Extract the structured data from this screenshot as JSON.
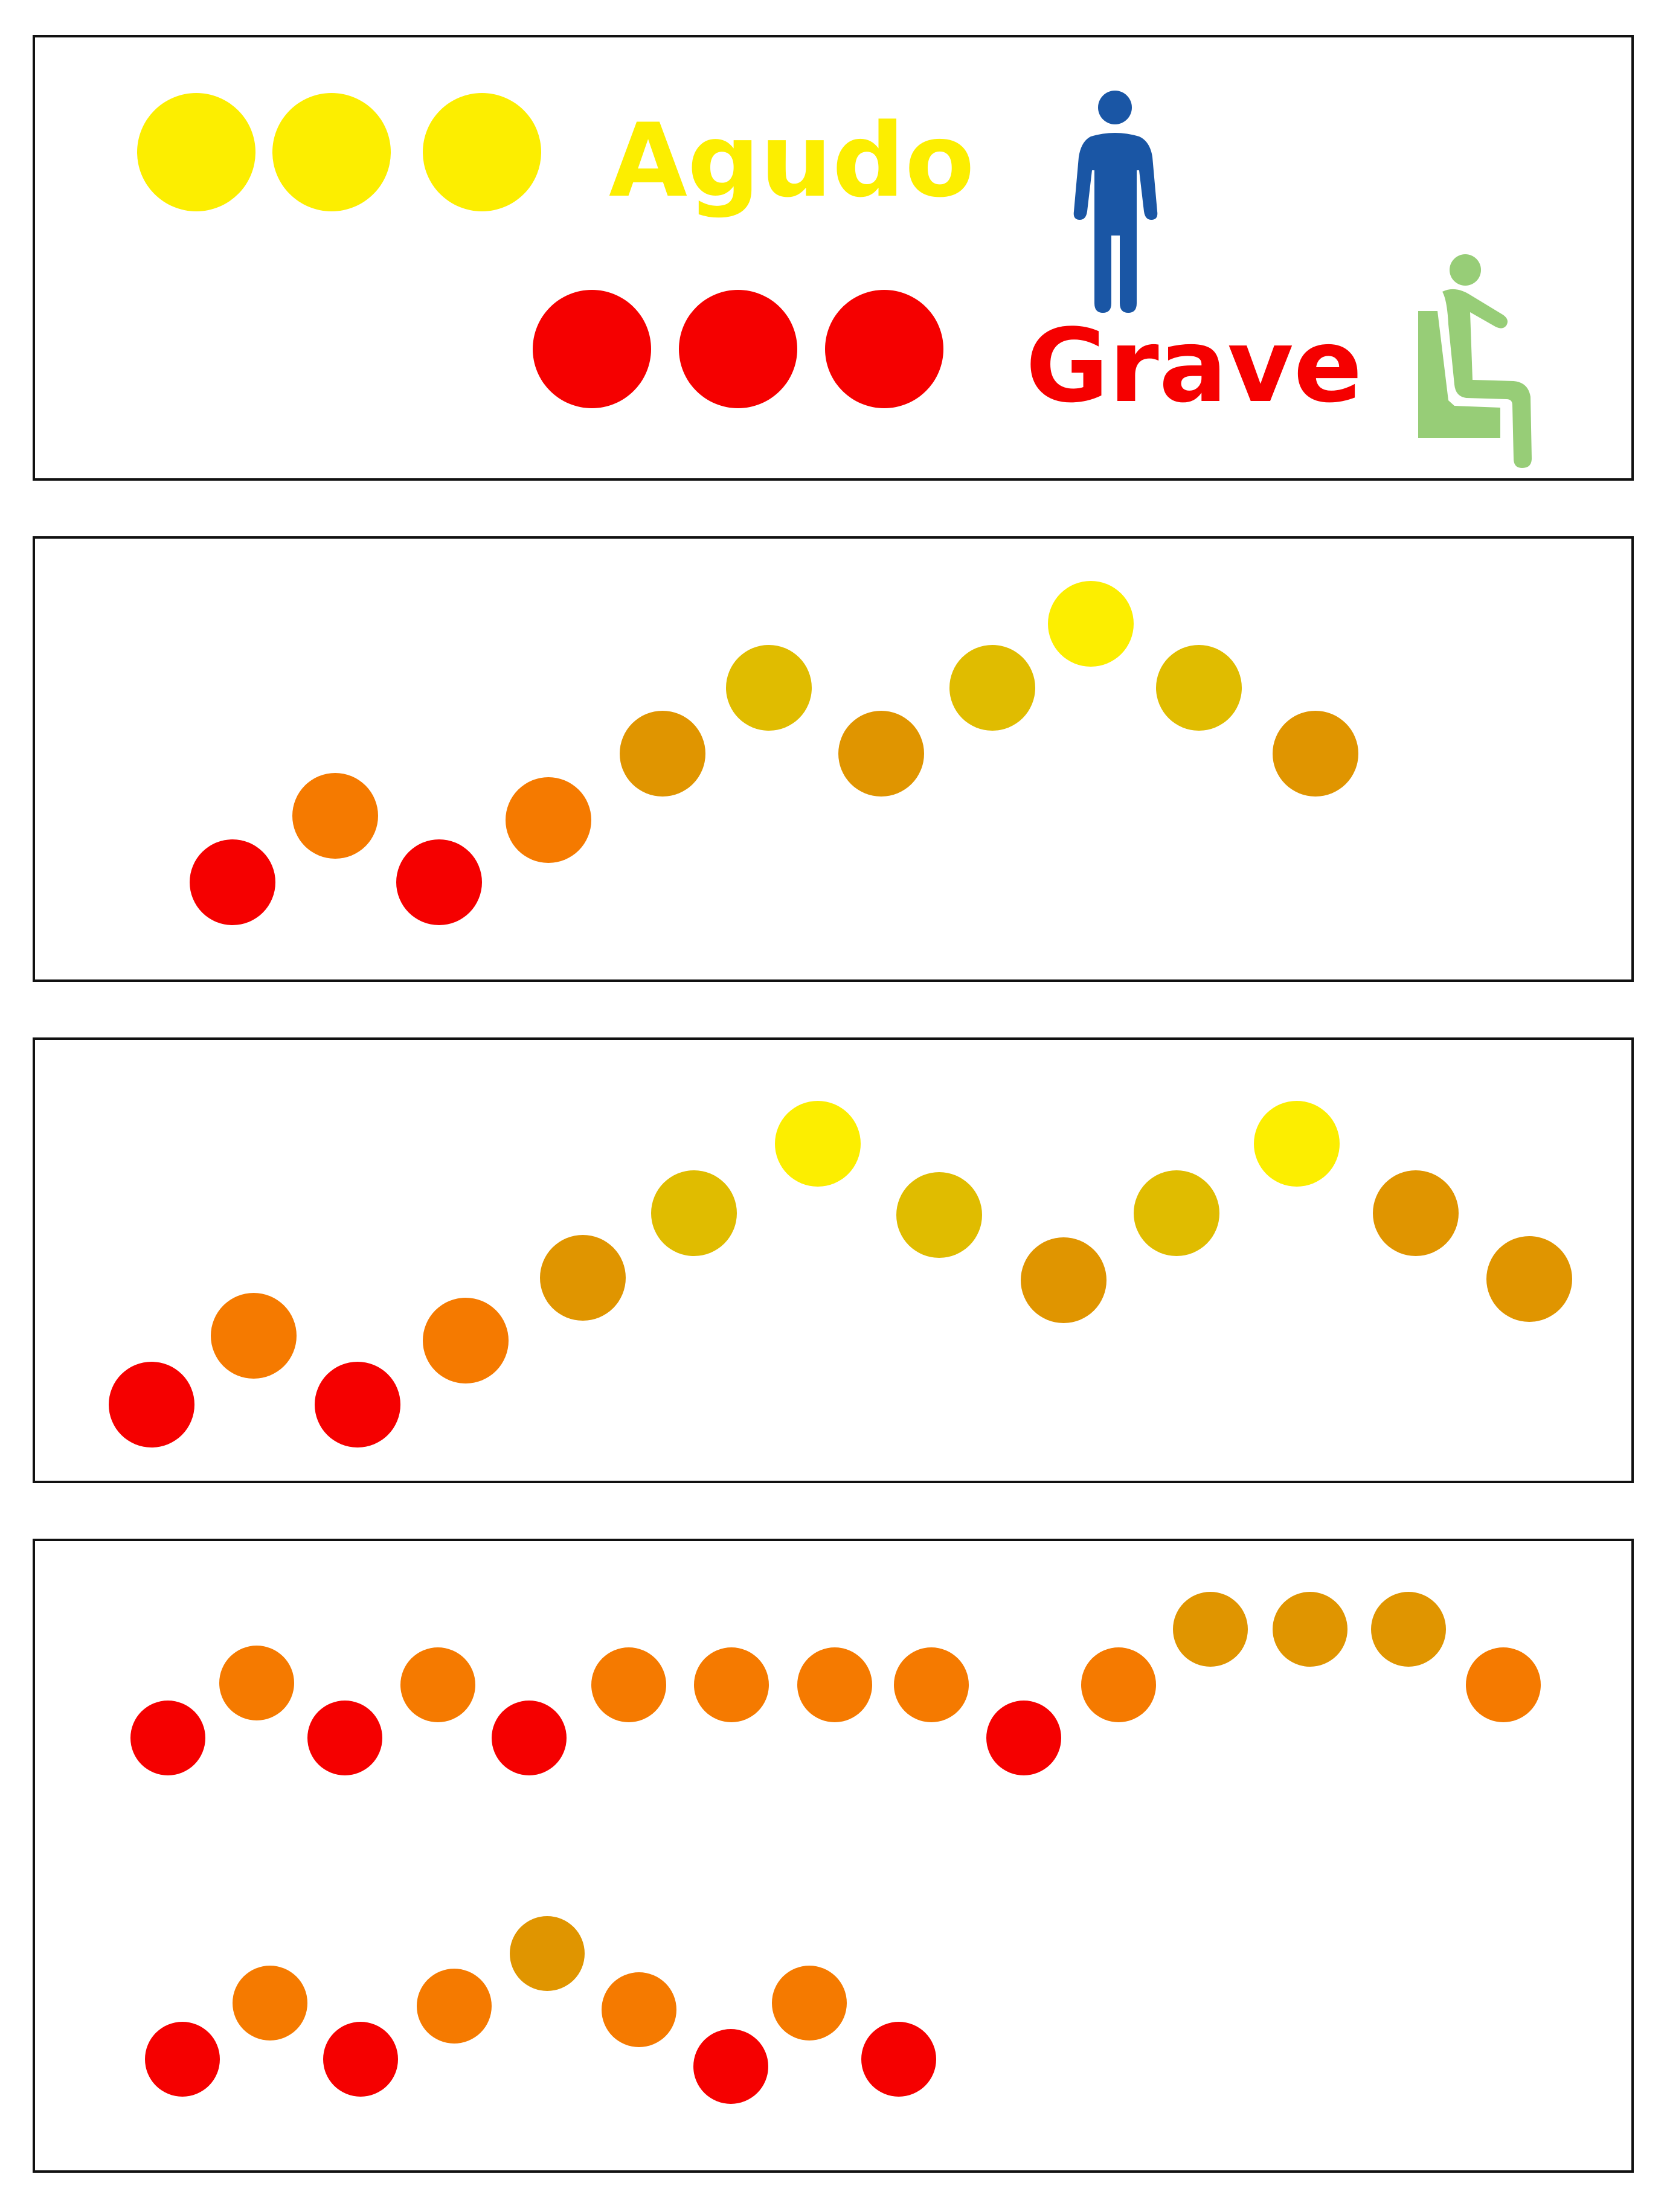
{
  "colors": {
    "high": "#FCEE00",
    "mid_high": "#E0BC00",
    "mid": "#E09500",
    "mid_low": "#F57A00",
    "low": "#F50000",
    "standing_icon": "#1A56A5",
    "sitting_icon": "#97CD77",
    "border": "#111111"
  },
  "legend": {
    "high": {
      "label": "Agudo",
      "dot_count": 3,
      "color": "high",
      "icon": "standing-person-icon"
    },
    "low": {
      "label": "Grave",
      "dot_count": 3,
      "color": "low",
      "icon": "sitting-person-icon"
    }
  },
  "melodies": [
    {
      "notes": [
        "low",
        "mid_low",
        "low",
        "mid_low",
        "mid",
        "mid_high",
        "mid",
        "mid_high",
        "high",
        "mid_high",
        "mid"
      ]
    },
    {
      "notes": [
        "low",
        "mid_low",
        "low",
        "mid_low",
        "mid",
        "mid_high",
        "high",
        "mid_high",
        "mid",
        "mid_high",
        "high",
        "mid",
        "mid"
      ]
    },
    {
      "notes": [
        "low",
        "mid_low",
        "low",
        "mid_low",
        "low",
        "mid_low",
        "mid_low",
        "mid_low",
        "mid_low",
        "low",
        "mid_low",
        "mid",
        "mid",
        "mid",
        "mid_low"
      ]
    },
    {
      "notes": [
        "low",
        "mid_low",
        "low",
        "mid_low",
        "mid",
        "mid_low",
        "low",
        "mid_low",
        "low"
      ]
    }
  ]
}
